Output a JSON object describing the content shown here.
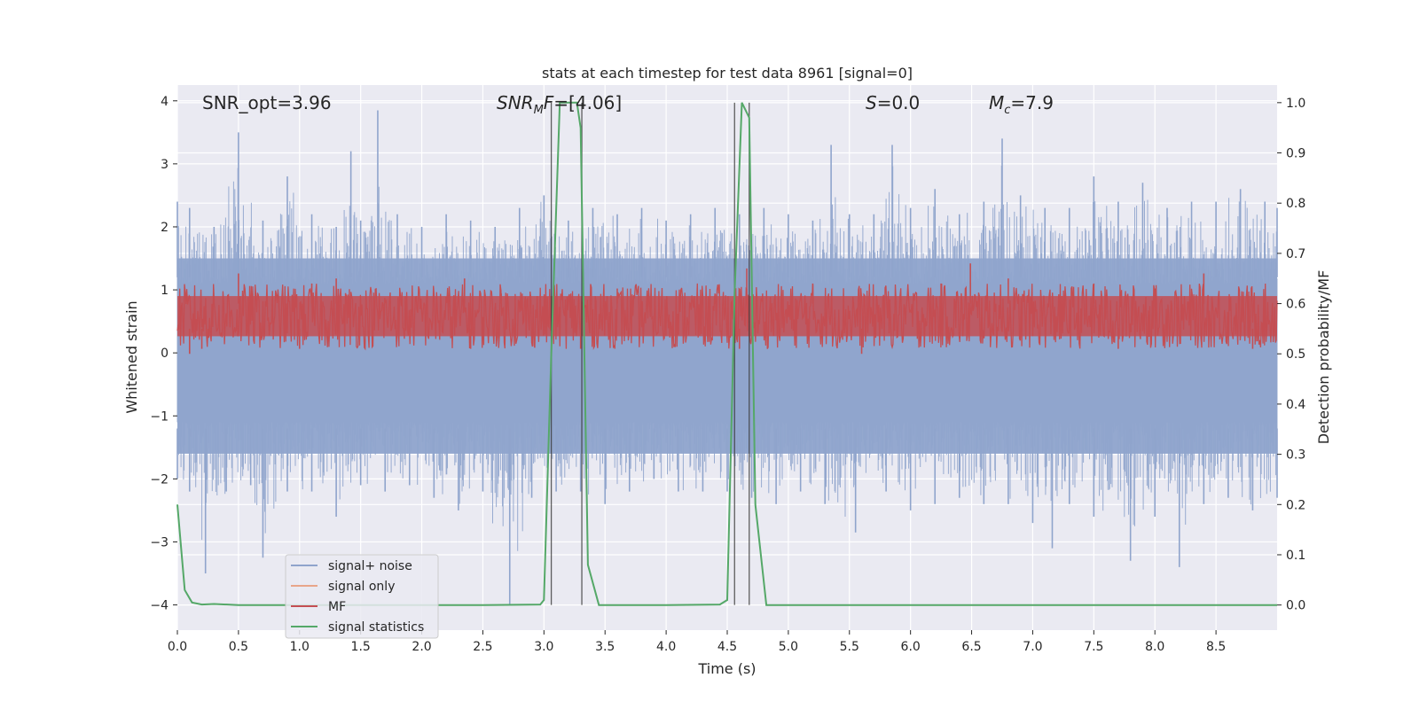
{
  "chart_data": {
    "type": "line",
    "title": "stats at each timestep for test data 8961 [signal=0]",
    "xlabel": "Time (s)",
    "ylabel": "Whitened strain",
    "ylabel_right": "Detection probability/MF",
    "xlim": [
      0.0,
      9.0
    ],
    "ylim": [
      -4.4,
      4.25
    ],
    "ylim_right": [
      -0.05,
      1.035
    ],
    "x_ticks": [
      "0.0",
      "0.5",
      "1.0",
      "1.5",
      "2.0",
      "2.5",
      "3.0",
      "3.5",
      "4.0",
      "4.5",
      "5.0",
      "5.5",
      "6.0",
      "6.5",
      "7.0",
      "7.5",
      "8.0",
      "8.5"
    ],
    "x_tick_values": [
      0.0,
      0.5,
      1.0,
      1.5,
      2.0,
      2.5,
      3.0,
      3.5,
      4.0,
      4.5,
      5.0,
      5.5,
      6.0,
      6.5,
      7.0,
      7.5,
      8.0,
      8.5
    ],
    "y_ticks": [
      "−4",
      "−3",
      "−2",
      "−1",
      "0",
      "1",
      "2",
      "3",
      "4"
    ],
    "y_tick_values": [
      -4,
      -3,
      -2,
      -1,
      0,
      1,
      2,
      3,
      4
    ],
    "y_right_ticks": [
      "0.0",
      "0.1",
      "0.2",
      "0.3",
      "0.4",
      "0.5",
      "0.6",
      "0.7",
      "0.8",
      "0.9",
      "1.0"
    ],
    "y_right_tick_values": [
      0.0,
      0.1,
      0.2,
      0.3,
      0.4,
      0.5,
      0.6,
      0.7,
      0.8,
      0.9,
      1.0
    ],
    "grid": true,
    "legend_position": "lower-left",
    "annotations": {
      "snr_opt": "SNR_opt=3.96",
      "snr_mf_italic": "SNR",
      "snr_mf_sub": "M",
      "snr_mf_rest_italic": "F",
      "snr_mf_value": "=[4.06]",
      "s_italic": "S",
      "s_value": "=0.0",
      "mc_italic": "M",
      "mc_sub": "c",
      "mc_value": "=7.9"
    },
    "vertical_lines_x": [
      3.06,
      3.31,
      4.56,
      4.68
    ],
    "series": [
      {
        "name": "signal+ noise",
        "color": "#8fa4cc",
        "axis": "left",
        "envelope_upper": [
          [
            0.0,
            2.4
          ],
          [
            0.1,
            2.3
          ],
          [
            0.3,
            2.0
          ],
          [
            0.5,
            3.5
          ],
          [
            0.7,
            2.1
          ],
          [
            0.9,
            2.8
          ],
          [
            1.1,
            2.2
          ],
          [
            1.3,
            2.0
          ],
          [
            1.42,
            3.2
          ],
          [
            1.5,
            2.1
          ],
          [
            1.64,
            3.85
          ],
          [
            1.8,
            2.2
          ],
          [
            2.0,
            2.0
          ],
          [
            2.2,
            2.2
          ],
          [
            2.4,
            2.1
          ],
          [
            2.6,
            2.0
          ],
          [
            2.8,
            2.3
          ],
          [
            3.0,
            2.5
          ],
          [
            3.2,
            2.1
          ],
          [
            3.4,
            2.3
          ],
          [
            3.6,
            2.2
          ],
          [
            3.8,
            2.3
          ],
          [
            4.0,
            2.1
          ],
          [
            4.2,
            2.2
          ],
          [
            4.4,
            2.3
          ],
          [
            4.6,
            2.2
          ],
          [
            4.8,
            2.3
          ],
          [
            5.0,
            2.2
          ],
          [
            5.2,
            2.1
          ],
          [
            5.35,
            3.3
          ],
          [
            5.5,
            2.2
          ],
          [
            5.7,
            2.2
          ],
          [
            5.85,
            3.3
          ],
          [
            6.0,
            2.3
          ],
          [
            6.2,
            2.6
          ],
          [
            6.4,
            2.2
          ],
          [
            6.6,
            2.4
          ],
          [
            6.75,
            3.4
          ],
          [
            6.9,
            2.5
          ],
          [
            7.1,
            2.3
          ],
          [
            7.3,
            2.3
          ],
          [
            7.5,
            2.8
          ],
          [
            7.7,
            2.4
          ],
          [
            7.9,
            2.7
          ],
          [
            8.1,
            2.3
          ],
          [
            8.3,
            2.4
          ],
          [
            8.5,
            2.4
          ],
          [
            8.7,
            2.6
          ],
          [
            8.9,
            2.4
          ],
          [
            9.0,
            2.3
          ]
        ],
        "envelope_lower": [
          [
            0.0,
            -2.0
          ],
          [
            0.1,
            -2.2
          ],
          [
            0.23,
            -3.5
          ],
          [
            0.4,
            -2.2
          ],
          [
            0.6,
            -2.1
          ],
          [
            0.7,
            -3.25
          ],
          [
            0.9,
            -2.2
          ],
          [
            1.1,
            -2.2
          ],
          [
            1.3,
            -2.6
          ],
          [
            1.5,
            -2.1
          ],
          [
            1.7,
            -2.2
          ],
          [
            1.9,
            -2.1
          ],
          [
            2.1,
            -2.3
          ],
          [
            2.3,
            -2.5
          ],
          [
            2.5,
            -2.2
          ],
          [
            2.72,
            -4.0
          ],
          [
            2.9,
            -2.3
          ],
          [
            3.1,
            -2.2
          ],
          [
            3.3,
            -2.2
          ],
          [
            3.5,
            -2.4
          ],
          [
            3.7,
            -2.2
          ],
          [
            3.9,
            -2.0
          ],
          [
            4.1,
            -2.2
          ],
          [
            4.3,
            -2.2
          ],
          [
            4.5,
            -2.2
          ],
          [
            4.7,
            -2.3
          ],
          [
            4.9,
            -2.4
          ],
          [
            5.1,
            -2.2
          ],
          [
            5.3,
            -2.4
          ],
          [
            5.55,
            -2.85
          ],
          [
            5.8,
            -2.2
          ],
          [
            6.0,
            -2.5
          ],
          [
            6.2,
            -2.4
          ],
          [
            6.4,
            -2.3
          ],
          [
            6.6,
            -2.4
          ],
          [
            6.8,
            -2.4
          ],
          [
            7.0,
            -2.7
          ],
          [
            7.16,
            -3.1
          ],
          [
            7.3,
            -2.4
          ],
          [
            7.5,
            -2.6
          ],
          [
            7.8,
            -3.3
          ],
          [
            8.0,
            -2.6
          ],
          [
            8.2,
            -3.4
          ],
          [
            8.4,
            -2.4
          ],
          [
            8.6,
            -2.3
          ],
          [
            8.8,
            -2.5
          ],
          [
            9.0,
            -2.3
          ]
        ]
      },
      {
        "name": "signal only",
        "color": "#e8a58a",
        "axis": "left",
        "values": []
      },
      {
        "name": "MF",
        "color": "#c44e52",
        "axis": "right",
        "band": [
          0.51,
          0.64
        ],
        "peaks": [
          [
            0.5,
            0.66
          ],
          [
            1.1,
            0.64
          ],
          [
            1.3,
            0.65
          ],
          [
            2.35,
            0.65
          ],
          [
            2.65,
            0.62
          ],
          [
            3.6,
            0.63
          ],
          [
            4.4,
            0.62
          ],
          [
            4.66,
            0.67
          ],
          [
            5.2,
            0.64
          ],
          [
            6.25,
            0.64
          ],
          [
            6.49,
            0.68
          ],
          [
            6.8,
            0.65
          ],
          [
            7.5,
            0.64
          ],
          [
            8.0,
            0.63
          ],
          [
            8.4,
            0.66
          ]
        ],
        "troughs": [
          [
            0.1,
            0.5
          ],
          [
            0.2,
            0.51
          ],
          [
            1.0,
            0.51
          ],
          [
            2.4,
            0.51
          ],
          [
            3.3,
            0.51
          ],
          [
            4.6,
            0.51
          ],
          [
            5.6,
            0.5
          ],
          [
            7.7,
            0.51
          ],
          [
            8.8,
            0.51
          ]
        ]
      },
      {
        "name": "signal statistics",
        "color": "#55a868",
        "axis": "right",
        "x": [
          0.0,
          0.06,
          0.12,
          0.2,
          0.3,
          0.5,
          1.0,
          2.0,
          2.5,
          2.97,
          3.0,
          3.06,
          3.13,
          3.27,
          3.3,
          3.36,
          3.45,
          3.6,
          4.0,
          4.44,
          4.5,
          4.56,
          4.62,
          4.68,
          4.73,
          4.82,
          4.9,
          6.0,
          9.0
        ],
        "values": [
          0.2,
          0.03,
          0.005,
          0.001,
          0.002,
          0.0,
          0.0,
          0.0,
          0.0,
          0.001,
          0.01,
          0.5,
          1.0,
          1.0,
          0.95,
          0.08,
          0.0,
          0.0,
          0.0,
          0.001,
          0.01,
          0.62,
          1.0,
          0.97,
          0.2,
          0.0,
          0.0,
          0.0,
          0.0
        ]
      }
    ]
  }
}
